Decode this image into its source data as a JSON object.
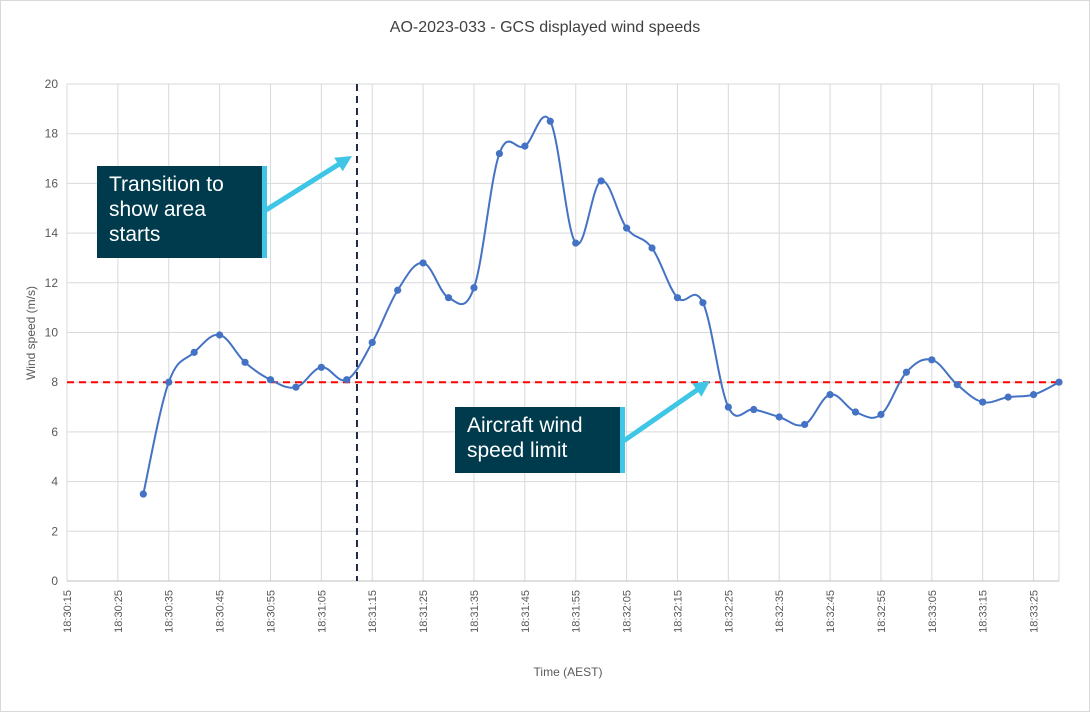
{
  "chart_data": {
    "type": "line",
    "title": "AO-2023-033 - GCS displayed wind speeds",
    "xlabel": "Time (AEST)",
    "ylabel": "Wind speed (m/s)",
    "ylim": [
      0,
      20
    ],
    "yticks": [
      0,
      2,
      4,
      6,
      8,
      10,
      12,
      14,
      16,
      18,
      20
    ],
    "xlim_seconds": [
      0,
      195
    ],
    "x_tick_labels": [
      "18:30:15",
      "18:30:25",
      "18:30:35",
      "18:30:45",
      "18:30:55",
      "18:31:05",
      "18:31:15",
      "18:31:25",
      "18:31:35",
      "18:31:45",
      "18:31:55",
      "18:32:05",
      "18:32:15",
      "18:32:25",
      "18:32:35",
      "18:32:45",
      "18:32:55",
      "18:33:05",
      "18:33:15",
      "18:33:25"
    ],
    "grid": true,
    "series": [
      {
        "name": "GCS displayed wind speed",
        "color": "#4472c4",
        "x_seconds": [
          15,
          20,
          25,
          30,
          35,
          40,
          45,
          50,
          55,
          60,
          65,
          70,
          75,
          80,
          85,
          90,
          95,
          100,
          105,
          110,
          115,
          120,
          125,
          130,
          135,
          140,
          145,
          150,
          155,
          160,
          165,
          170,
          175,
          180,
          185,
          190,
          195
        ],
        "values": [
          3.5,
          8.0,
          9.2,
          9.9,
          8.8,
          8.1,
          7.8,
          8.6,
          8.1,
          9.6,
          11.7,
          12.8,
          11.4,
          11.8,
          17.2,
          17.5,
          18.5,
          13.6,
          16.1,
          14.2,
          13.4,
          11.4,
          11.2,
          7.0,
          6.9,
          6.6,
          6.3,
          7.5,
          6.8,
          6.7,
          8.4,
          8.9,
          7.9,
          7.2,
          7.4,
          7.5,
          8.0
        ]
      }
    ],
    "reference_lines": [
      {
        "name": "Aircraft wind speed limit",
        "axis": "y",
        "value": 8,
        "color": "#ff0000",
        "style": "dashed"
      },
      {
        "name": "Transition to show area starts",
        "axis": "x",
        "value_seconds": 57,
        "color": "#1f2a44",
        "style": "dashed"
      }
    ],
    "annotations": [
      {
        "id": "transition",
        "text": "Transition to show area starts",
        "lines": [
          "Transition to",
          "show area",
          "starts"
        ]
      },
      {
        "id": "limit",
        "text": "Aircraft wind speed limit",
        "lines": [
          "Aircraft wind",
          "speed limit"
        ]
      }
    ]
  },
  "colors": {
    "grid": "#d9d9d9",
    "axis_text": "#595959",
    "title_text": "#404040",
    "callout_bg": "#003a4d",
    "callout_accent": "#3fc6e6",
    "arrow": "#3fc6e6"
  }
}
